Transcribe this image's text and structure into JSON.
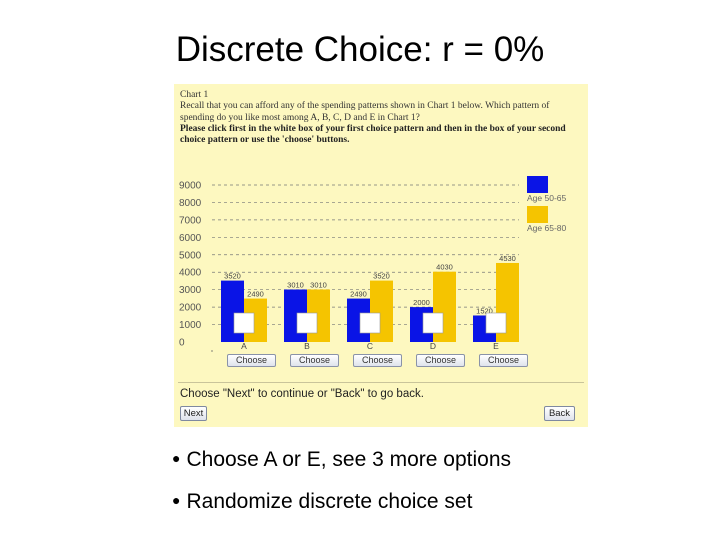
{
  "slide": {
    "title": "Discrete Choice: r = 0%",
    "bullets": [
      "Choose A or E, see 3 more options",
      "Randomize discrete choice set"
    ]
  },
  "panel": {
    "heading": "Chart 1",
    "instruction_line1": "Recall that you can afford any of the spending patterns shown in Chart 1 below. Which pattern of spending do you like most among A, B, C, D and E in Chart 1?",
    "instruction_line2": "Please click first in the white box of your first choice pattern and then in the box of your second choice pattern or use the 'choose' buttons.",
    "choose_label": "Choose",
    "footer_text": "Choose \"Next\" to continue or \"Back\" to go back.",
    "next_label": "Next",
    "back_label": "Back"
  },
  "chart_data": {
    "type": "bar",
    "categories": [
      "A",
      "B",
      "C",
      "D",
      "E"
    ],
    "series": [
      {
        "name": "Age 50-65",
        "color": "#0a14e6",
        "values": [
          3520,
          3010,
          2490,
          2000,
          1520
        ]
      },
      {
        "name": "Age 65-80",
        "color": "#f5c400",
        "values": [
          2490,
          3010,
          3520,
          4030,
          4530
        ]
      }
    ],
    "value_labels": [
      [
        "3520",
        "3010",
        "2490",
        "2000",
        "1520"
      ],
      [
        "2490",
        "3010",
        "3520",
        "4030",
        "4530"
      ]
    ],
    "y_ticks": [
      "0",
      "1000",
      "2000",
      "3000",
      "4000",
      "5000",
      "6000",
      "7000",
      "8000",
      "9000"
    ],
    "ylim": [
      0,
      9000
    ],
    "grid": true,
    "legend_position": "right"
  }
}
